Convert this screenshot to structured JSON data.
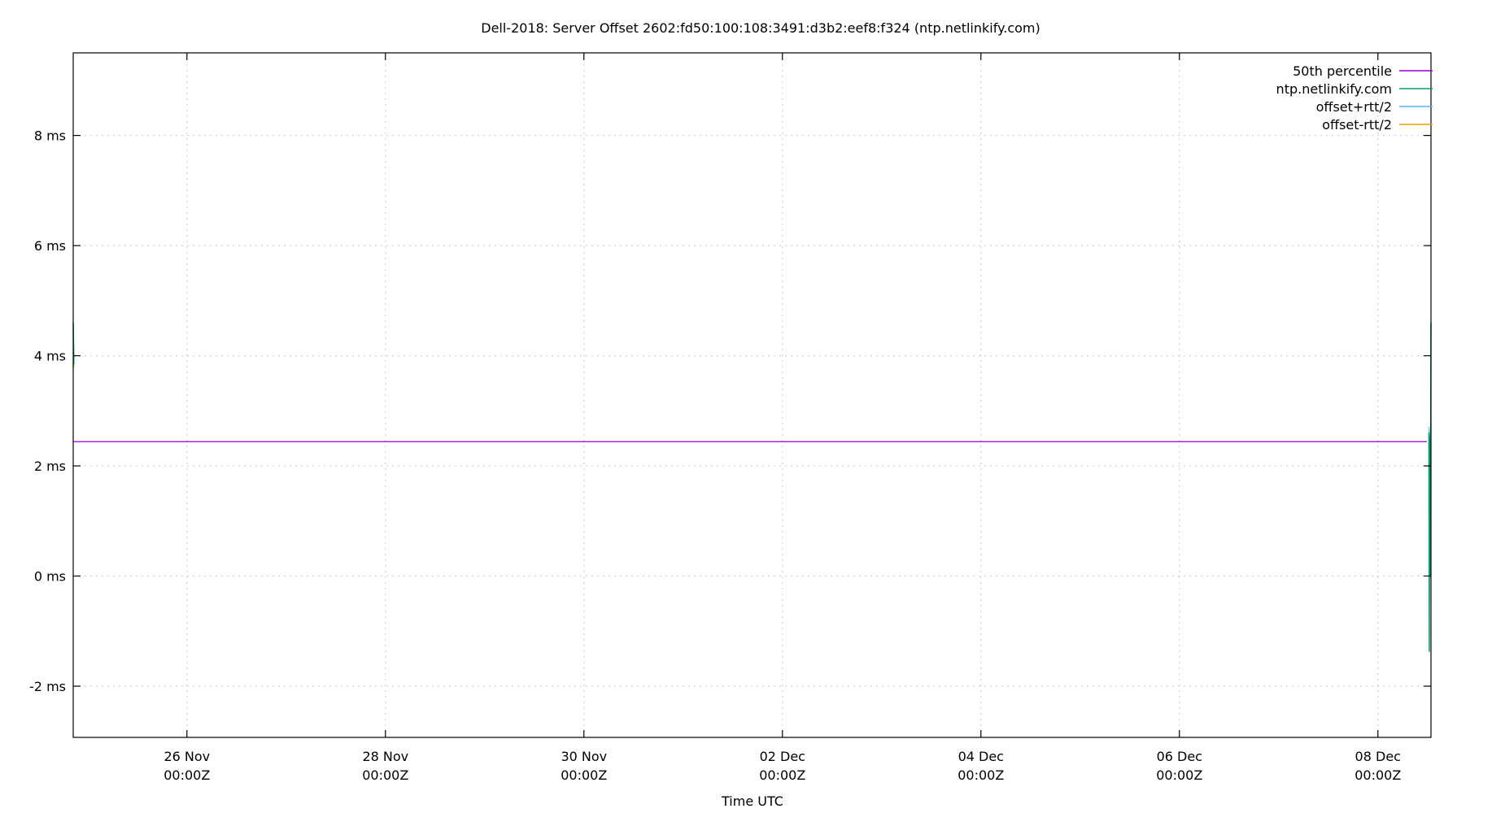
{
  "chart_data": {
    "type": "line",
    "title": "Dell-2018: Server Offset 2602:fd50:100:108:3491:d3b2:eef8:f324 (ntp.netlinkify.com)",
    "xlabel": "Time UTC",
    "ylabel": "",
    "xlim": [
      "Nov 24 20:30",
      "Dec 08 12:50"
    ],
    "ylim": [
      -2.93,
      9.5
    ],
    "y_unit": "ms",
    "grid": true,
    "legend_position": "top-right",
    "x_ticks": [
      {
        "value": "Nov 26 00:00",
        "label1": "26 Nov",
        "label2": "00:00Z"
      },
      {
        "value": "Nov 28 00:00",
        "label1": "28 Nov",
        "label2": "00:00Z"
      },
      {
        "value": "Nov 30 00:00",
        "label1": "30 Nov",
        "label2": "00:00Z"
      },
      {
        "value": "Dec 02 00:00",
        "label1": "02 Dec",
        "label2": "00:00Z"
      },
      {
        "value": "Dec 04 00:00",
        "label1": "04 Dec",
        "label2": "00:00Z"
      },
      {
        "value": "Dec 06 00:00",
        "label1": "06 Dec",
        "label2": "00:00Z"
      },
      {
        "value": "Dec 08 00:00",
        "label1": "08 Dec",
        "label2": "00:00Z"
      }
    ],
    "y_ticks": [
      {
        "value": -2,
        "label": "-2 ms"
      },
      {
        "value": 0,
        "label": "0 ms"
      },
      {
        "value": 2,
        "label": "2 ms"
      },
      {
        "value": 4,
        "label": "4 ms"
      },
      {
        "value": 6,
        "label": "6 ms"
      },
      {
        "value": 8,
        "label": "8 ms"
      }
    ],
    "series": [
      {
        "name": "50th percentile",
        "color": "#9400d3",
        "kind": "hline",
        "value": 2.44
      },
      {
        "name": "ntp.netlinkify.com",
        "color": "#009e73",
        "points": [
          [
            "Nov 24 20:30",
            4.6
          ],
          [
            "Nov 24 20:40",
            3.85
          ],
          [
            "Dec 08 12:20",
            2.6
          ],
          [
            "Dec 08 12:25",
            -1.37
          ],
          [
            "Dec 08 12:30",
            2.55
          ],
          [
            "Dec 08 12:40",
            0.0
          ],
          [
            "Dec 08 12:50",
            4.6
          ]
        ]
      },
      {
        "name": "offset+rtt/2",
        "color": "#56b4e9",
        "points": [
          [
            "Nov 24 20:30",
            4.5
          ],
          [
            "Nov 24 20:40",
            3.95
          ],
          [
            "Dec 08 12:20",
            2.7
          ],
          [
            "Dec 08 12:25",
            0.0
          ],
          [
            "Dec 08 12:30",
            2.65
          ]
        ]
      },
      {
        "name": "offset-rtt/2",
        "color": "#e69f00",
        "points": [
          [
            "Nov 24 20:30",
            4.4
          ],
          [
            "Nov 24 20:40",
            3.8
          ],
          [
            "Dec 08 12:20",
            2.5
          ],
          [
            "Dec 08 12:25",
            -1.3
          ],
          [
            "Dec 08 12:30",
            2.45
          ]
        ]
      }
    ]
  }
}
